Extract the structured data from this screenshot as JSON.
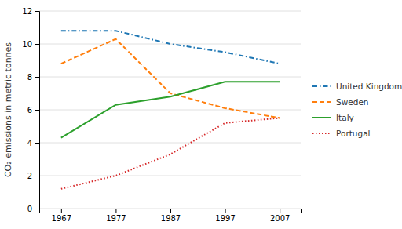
{
  "chart_data": {
    "type": "line",
    "x": [
      1967,
      1977,
      1987,
      1997,
      2007
    ],
    "series": [
      {
        "name": "United Kingdom",
        "values": [
          10.8,
          10.8,
          10.0,
          9.5,
          8.8
        ],
        "line_style": "dashdot"
      },
      {
        "name": "Sweden",
        "values": [
          8.8,
          10.3,
          7.0,
          6.1,
          5.5
        ],
        "line_style": "dashed"
      },
      {
        "name": "Italy",
        "values": [
          4.3,
          6.3,
          6.8,
          7.7,
          7.7
        ],
        "line_style": "solid"
      },
      {
        "name": "Portugal",
        "values": [
          1.2,
          2.0,
          3.3,
          5.2,
          5.5
        ],
        "line_style": "dotted"
      }
    ],
    "ylabel": "CO₂ emissions in metric tonnes",
    "xlim": [
      1963,
      2011
    ],
    "xticks": [
      1967,
      1977,
      1987,
      1997,
      2007
    ],
    "ylim": [
      0,
      12
    ],
    "yticks": [
      0,
      2,
      4,
      6,
      8,
      10,
      12
    ],
    "grid": true,
    "legend": "right"
  }
}
